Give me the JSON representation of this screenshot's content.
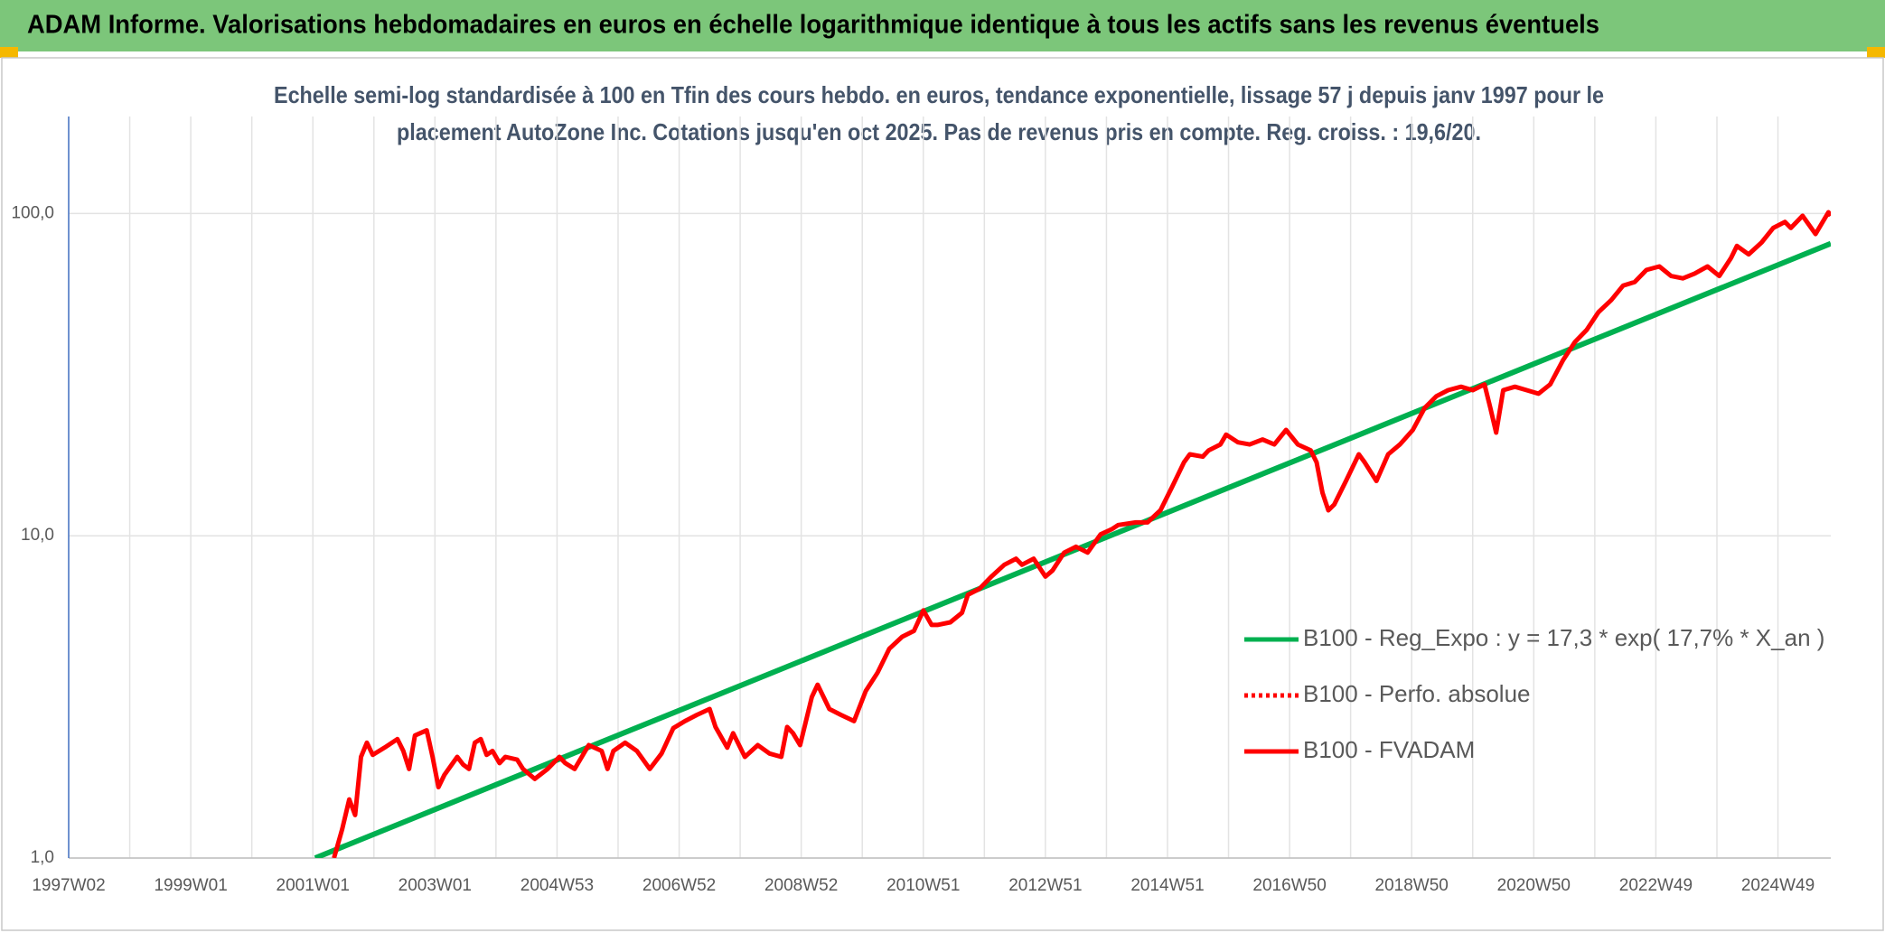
{
  "chart_data": {
    "type": "line",
    "title": "ADAM Informe. Valorisations hebdomadaires en euros en échelle logarithmique identique à tous les actifs sans les revenus éventuels",
    "subtitle": [
      "Echelle semi-log standardisée à 100 en Tfin des cours hebdo. en euros, tendance exponentielle, lissage 57 j depuis janv 1997 pour le",
      "placement AutoZone Inc. Cotations jusqu'en oct 2025. Pas de revenus pris en compte. Reg. croiss. : 19,6/20."
    ],
    "xlim": [
      0,
      1501
    ],
    "xticks": [
      {
        "value": 0,
        "label": "1997W02"
      },
      {
        "value": 104,
        "label": "1999W01"
      },
      {
        "value": 208,
        "label": "2001W01"
      },
      {
        "value": 312,
        "label": "2003W01"
      },
      {
        "value": 416,
        "label": "2004W53"
      },
      {
        "value": 520,
        "label": "2006W52"
      },
      {
        "value": 624,
        "label": "2008W52"
      },
      {
        "value": 728,
        "label": "2010W51"
      },
      {
        "value": 832,
        "label": "2012W51"
      },
      {
        "value": 936,
        "label": "2014W51"
      },
      {
        "value": 1040,
        "label": "2016W50"
      },
      {
        "value": 1144,
        "label": "2018W50"
      },
      {
        "value": 1248,
        "label": "2020W50"
      },
      {
        "value": 1352,
        "label": "2022W49"
      },
      {
        "value": 1456,
        "label": "2024W49"
      }
    ],
    "xminorticks": [
      52,
      156,
      260,
      364,
      468,
      572,
      676,
      780,
      884,
      988,
      1092,
      1196,
      1300,
      1404
    ],
    "ylim": [
      1,
      200
    ],
    "yticks": [
      {
        "value": 1,
        "label": "1,0"
      },
      {
        "value": 10,
        "label": "10,0"
      },
      {
        "value": 100,
        "label": "100,0"
      }
    ],
    "log_y": true,
    "grid": true,
    "legend": "right",
    "series": [
      {
        "name": "B100 - Reg_Expo : y = 17,3 * exp( 17,7% *  X_an )",
        "color": "#00b050",
        "line_style": "solid",
        "x": [
          210,
          1501
        ],
        "values": [
          1.0,
          80.7
        ]
      },
      {
        "name": "B100 - Perfo. absolue",
        "color": "#ff0000",
        "line_style": "dotted",
        "x": [],
        "values": []
      },
      {
        "name": "B100 - FVADAM",
        "color": "#ff0000",
        "line_style": "solid",
        "x": [
          226,
          233,
          239,
          244,
          249,
          254,
          259,
          269,
          280,
          285,
          290,
          295,
          305,
          310,
          315,
          320,
          331,
          336,
          341,
          346,
          351,
          356,
          361,
          367,
          372,
          382,
          387,
          397,
          408,
          418,
          423,
          431,
          443,
          454,
          459,
          464,
          474,
          484,
          495,
          505,
          515,
          525,
          535,
          546,
          551,
          561,
          566,
          576,
          587,
          597,
          607,
          612,
          617,
          623,
          633,
          638,
          648,
          658,
          669,
          679,
          689,
          699,
          710,
          720,
          728,
          735,
          740,
          751,
          761,
          766,
          776,
          786,
          797,
          807,
          812,
          822,
          832,
          838,
          848,
          858,
          868,
          879,
          889,
          894,
          909,
          919,
          930,
          940,
          950,
          955,
          966,
          971,
          981,
          986,
          996,
          1006,
          1017,
          1027,
          1037,
          1047,
          1058,
          1063,
          1068,
          1073,
          1078,
          1088,
          1099,
          1104,
          1114,
          1124,
          1134,
          1145,
          1155,
          1165,
          1175,
          1186,
          1196,
          1206,
          1211,
          1216,
          1222,
          1232,
          1242,
          1252,
          1262,
          1273,
          1283,
          1293,
          1303,
          1314,
          1324,
          1334,
          1344,
          1355,
          1365,
          1375,
          1385,
          1396,
          1406,
          1416,
          1421,
          1431,
          1442,
          1452,
          1462,
          1467,
          1477,
          1488,
          1499,
          1501
        ],
        "values": [
          1.0,
          1.23,
          1.52,
          1.36,
          2.06,
          2.28,
          2.09,
          2.2,
          2.34,
          2.15,
          1.89,
          2.4,
          2.49,
          2.06,
          1.66,
          1.81,
          2.06,
          1.95,
          1.89,
          2.28,
          2.34,
          2.09,
          2.15,
          1.97,
          2.06,
          2.02,
          1.89,
          1.76,
          1.89,
          2.06,
          1.97,
          1.89,
          2.24,
          2.15,
          1.89,
          2.15,
          2.28,
          2.15,
          1.89,
          2.11,
          2.53,
          2.66,
          2.78,
          2.9,
          2.55,
          2.2,
          2.44,
          2.06,
          2.24,
          2.11,
          2.06,
          2.55,
          2.44,
          2.24,
          3.16,
          3.45,
          2.9,
          2.78,
          2.66,
          3.3,
          3.76,
          4.46,
          4.86,
          5.07,
          5.87,
          5.29,
          5.29,
          5.39,
          5.77,
          6.56,
          6.85,
          7.47,
          8.13,
          8.49,
          8.13,
          8.49,
          7.47,
          7.8,
          8.87,
          9.25,
          8.87,
          10.1,
          10.5,
          10.8,
          11.0,
          11.0,
          12.0,
          14.2,
          16.9,
          17.9,
          17.6,
          18.4,
          19.2,
          20.6,
          19.5,
          19.2,
          19.9,
          19.2,
          21.3,
          19.2,
          18.4,
          16.9,
          13.6,
          12.0,
          12.5,
          14.8,
          17.9,
          16.9,
          14.8,
          17.9,
          19.2,
          21.3,
          24.9,
          27.1,
          28.3,
          29.0,
          28.3,
          29.5,
          24.9,
          20.9,
          28.3,
          29.0,
          28.3,
          27.6,
          29.5,
          35.1,
          39.9,
          43.5,
          49.4,
          53.9,
          59.7,
          61.3,
          66.8,
          68.5,
          64.0,
          62.9,
          65.1,
          68.5,
          64.0,
          72.8,
          79.3,
          74.7,
          81.3,
          90.2,
          94.2,
          90.2,
          98.4,
          86.4,
          100.9,
          98.4
        ]
      }
    ]
  }
}
